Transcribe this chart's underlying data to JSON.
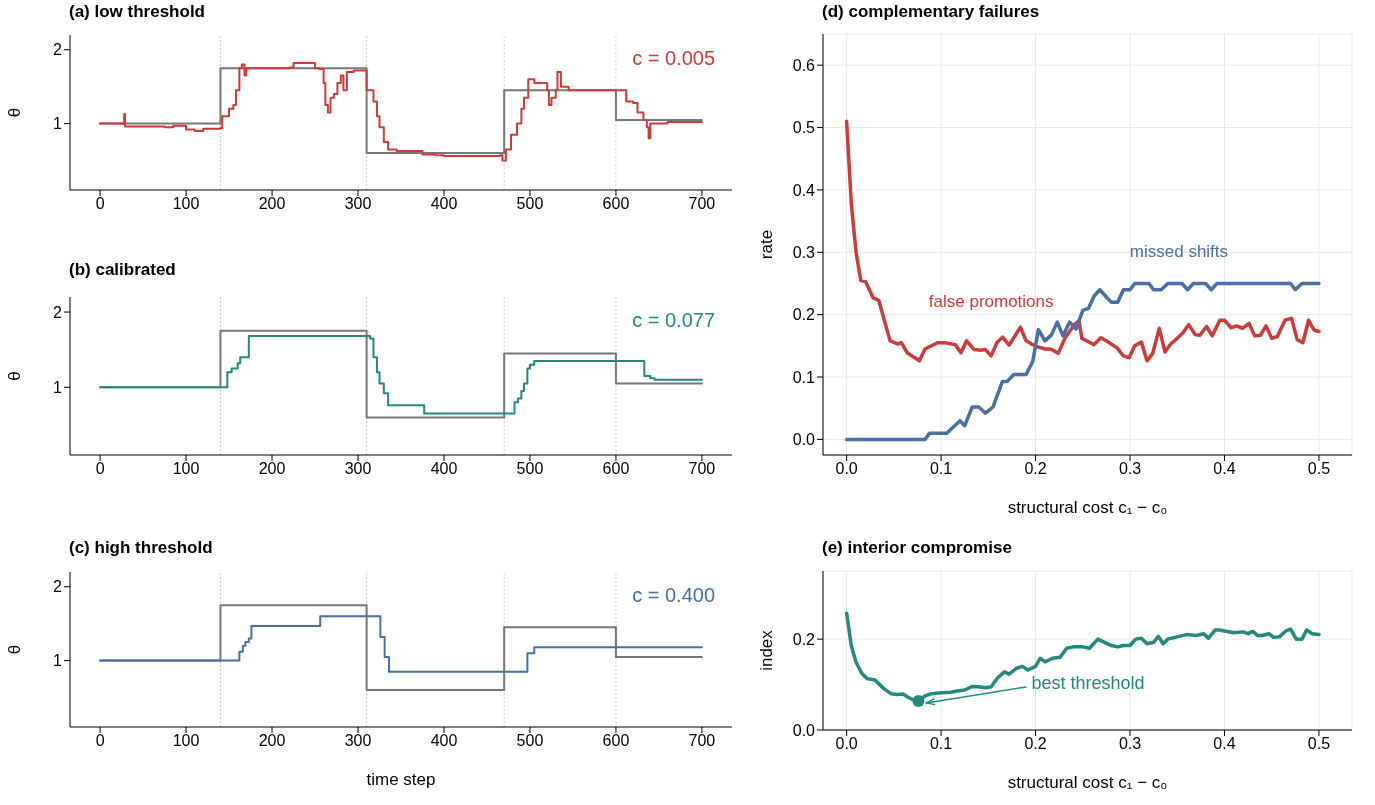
{
  "chart_data": [
    {
      "type": "step",
      "title": "(a) low threshold",
      "ylabel": "θ",
      "xlim": [
        -35,
        735
      ],
      "xticks": [
        0,
        100,
        200,
        300,
        400,
        500,
        600,
        700
      ],
      "ylim": [
        0.1,
        2.2
      ],
      "yticks": [
        1,
        2
      ],
      "grid": false,
      "ref_lines": [
        {
          "axis": "x",
          "value": 140,
          "color": "#bbbbbb",
          "line_style": "dotted"
        },
        {
          "axis": "x",
          "value": 310,
          "color": "#bbbbbb",
          "line_style": "dotted"
        },
        {
          "axis": "x",
          "value": 470,
          "color": "#bbbbbb",
          "line_style": "dotted"
        },
        {
          "axis": "x",
          "value": 600,
          "color": "#bbbbbb",
          "line_style": "dotted"
        }
      ],
      "annotations": [
        "c = 0.005"
      ],
      "series": [
        {
          "color": "#777777",
          "x": [
            0,
            140,
            310,
            470,
            600,
            700
          ],
          "values": [
            1.0,
            1.75,
            0.6,
            1.45,
            1.05,
            1.05
          ]
        },
        {
          "color": "#cc3a3a",
          "x": [
            0,
            28,
            29,
            31,
            60,
            75,
            85,
            100,
            110,
            120,
            140,
            142,
            150,
            155,
            158,
            162,
            165,
            168,
            170,
            175,
            220,
            225,
            245,
            250,
            255,
            260,
            262,
            265,
            268,
            272,
            276,
            280,
            283,
            287,
            295,
            305,
            310,
            315,
            318,
            322,
            325,
            330,
            335,
            345,
            370,
            375,
            390,
            400,
            450,
            465,
            468,
            472,
            478,
            485,
            490,
            493,
            498,
            505,
            512,
            520,
            522,
            525,
            530,
            532,
            536,
            545,
            600,
            610,
            612,
            620,
            625,
            632,
            636,
            638,
            640,
            660,
            700
          ],
          "values": [
            1.0,
            1.13,
            0.96,
            0.96,
            0.96,
            0.95,
            0.97,
            0.92,
            0.9,
            0.93,
            0.94,
            1.1,
            1.2,
            1.25,
            1.45,
            1.75,
            1.8,
            1.65,
            1.75,
            1.75,
            1.76,
            1.82,
            1.82,
            1.75,
            1.74,
            1.55,
            1.25,
            1.15,
            1.35,
            1.4,
            1.55,
            1.65,
            1.45,
            1.7,
            1.72,
            1.72,
            1.45,
            1.45,
            1.3,
            1.1,
            0.95,
            0.75,
            0.65,
            0.63,
            0.63,
            0.58,
            0.57,
            0.56,
            0.56,
            0.57,
            0.5,
            0.65,
            0.85,
            1.0,
            1.2,
            1.35,
            1.6,
            1.55,
            1.55,
            1.45,
            1.25,
            1.35,
            1.45,
            1.7,
            1.5,
            1.45,
            1.45,
            1.45,
            1.3,
            1.28,
            1.15,
            1.05,
            0.95,
            0.8,
            1.0,
            1.02,
            1.02
          ]
        }
      ]
    },
    {
      "type": "step",
      "title": "(b) calibrated",
      "ylabel": "θ",
      "xlim": [
        -35,
        735
      ],
      "xticks": [
        0,
        100,
        200,
        300,
        400,
        500,
        600,
        700
      ],
      "ylim": [
        0.1,
        2.2
      ],
      "yticks": [
        1,
        2
      ],
      "grid": false,
      "ref_lines": [
        {
          "axis": "x",
          "value": 140,
          "color": "#bbbbbb",
          "line_style": "dotted"
        },
        {
          "axis": "x",
          "value": 310,
          "color": "#bbbbbb",
          "line_style": "dotted"
        },
        {
          "axis": "x",
          "value": 470,
          "color": "#bbbbbb",
          "line_style": "dotted"
        },
        {
          "axis": "x",
          "value": 600,
          "color": "#bbbbbb",
          "line_style": "dotted"
        }
      ],
      "annotations": [
        "c = 0.077"
      ],
      "series": [
        {
          "color": "#777777",
          "x": [
            0,
            140,
            310,
            470,
            600,
            700
          ],
          "values": [
            1.0,
            1.75,
            0.6,
            1.45,
            1.05,
            1.05
          ]
        },
        {
          "color": "#23897a",
          "x": [
            0,
            148,
            153,
            160,
            163,
            166,
            173,
            310,
            314,
            318,
            322,
            325,
            330,
            335,
            375,
            377,
            482,
            486,
            490,
            493,
            497,
            500,
            505,
            630,
            633,
            640,
            645,
            700
          ],
          "values": [
            1.0,
            1.2,
            1.25,
            1.32,
            1.4,
            1.4,
            1.68,
            1.68,
            1.65,
            1.4,
            1.2,
            1.05,
            0.92,
            0.76,
            0.76,
            0.65,
            0.8,
            0.85,
            0.95,
            1.05,
            1.25,
            1.3,
            1.35,
            1.35,
            1.15,
            1.12,
            1.1,
            1.1
          ]
        }
      ]
    },
    {
      "type": "step",
      "title": "(c) high threshold",
      "ylabel": "θ",
      "xlabel": "time step",
      "xlim": [
        -35,
        735
      ],
      "xticks": [
        0,
        100,
        200,
        300,
        400,
        500,
        600,
        700
      ],
      "ylim": [
        0.1,
        2.2
      ],
      "yticks": [
        1,
        2
      ],
      "grid": false,
      "ref_lines": [
        {
          "axis": "x",
          "value": 140,
          "color": "#bbbbbb",
          "line_style": "dotted"
        },
        {
          "axis": "x",
          "value": 310,
          "color": "#bbbbbb",
          "line_style": "dotted"
        },
        {
          "axis": "x",
          "value": 470,
          "color": "#bbbbbb",
          "line_style": "dotted"
        },
        {
          "axis": "x",
          "value": 600,
          "color": "#bbbbbb",
          "line_style": "dotted"
        }
      ],
      "annotations": [
        "c = 0.400"
      ],
      "series": [
        {
          "color": "#777777",
          "x": [
            0,
            140,
            310,
            470,
            600,
            700
          ],
          "values": [
            1.0,
            1.75,
            0.6,
            1.45,
            1.05,
            1.05
          ]
        },
        {
          "color": "#4a6fa5",
          "x": [
            0,
            160,
            162,
            166,
            169,
            173,
            176,
            253,
            256,
            323,
            326,
            331,
            336,
            494,
            497,
            505,
            700
          ],
          "values": [
            1.0,
            1.0,
            1.12,
            1.2,
            1.25,
            1.3,
            1.47,
            1.47,
            1.6,
            1.6,
            1.32,
            1.05,
            0.85,
            0.85,
            1.1,
            1.18,
            1.18
          ]
        }
      ]
    },
    {
      "type": "line",
      "title": "(d) complementary failures",
      "ylabel": "rate",
      "xlabel": "structural cost c₁ − c₀",
      "xlim": [
        -0.025,
        0.535
      ],
      "xticks": [
        {
          "value": 0,
          "label": "0.0"
        },
        0.1,
        0.2,
        0.3,
        0.4,
        0.5
      ],
      "ylim": [
        -0.025,
        0.65
      ],
      "yticks": [
        {
          "value": 0,
          "label": "0.0"
        },
        0.1,
        0.2,
        0.3,
        0.4,
        0.5,
        0.6
      ],
      "grid": true,
      "series": [
        {
          "name": "false promotions",
          "color": "#cc3a3a",
          "x": [
            0,
            0.005,
            0.01,
            0.015,
            0.02,
            0.028,
            0.034,
            0.046,
            0.054,
            0.058,
            0.064,
            0.077,
            0.083,
            0.096,
            0.104,
            0.115,
            0.121,
            0.127,
            0.135,
            0.142,
            0.147,
            0.153,
            0.159,
            0.165,
            0.172,
            0.184,
            0.19,
            0.199,
            0.21,
            0.216,
            0.224,
            0.231,
            0.241,
            0.246,
            0.249,
            0.258,
            0.262,
            0.269,
            0.275,
            0.286,
            0.293,
            0.299,
            0.305,
            0.312,
            0.318,
            0.324,
            0.331,
            0.337,
            0.343,
            0.35,
            0.356,
            0.362,
            0.369,
            0.374,
            0.381,
            0.387,
            0.395,
            0.4,
            0.407,
            0.413,
            0.419,
            0.426,
            0.432,
            0.438,
            0.444,
            0.45,
            0.456,
            0.464,
            0.471,
            0.477,
            0.483,
            0.489,
            0.495,
            0.5
          ],
          "values": [
            0.51,
            0.377,
            0.3,
            0.255,
            0.253,
            0.227,
            0.223,
            0.158,
            0.153,
            0.155,
            0.139,
            0.126,
            0.145,
            0.155,
            0.155,
            0.152,
            0.139,
            0.158,
            0.144,
            0.143,
            0.144,
            0.134,
            0.155,
            0.164,
            0.151,
            0.18,
            0.158,
            0.15,
            0.145,
            0.145,
            0.138,
            0.162,
            0.184,
            0.19,
            0.162,
            0.155,
            0.152,
            0.163,
            0.158,
            0.147,
            0.134,
            0.131,
            0.15,
            0.156,
            0.126,
            0.138,
            0.178,
            0.14,
            0.153,
            0.162,
            0.171,
            0.184,
            0.168,
            0.167,
            0.181,
            0.166,
            0.191,
            0.191,
            0.179,
            0.182,
            0.178,
            0.186,
            0.166,
            0.167,
            0.182,
            0.162,
            0.165,
            0.191,
            0.194,
            0.16,
            0.155,
            0.191,
            0.175,
            0.173
          ]
        },
        {
          "name": "missed shifts",
          "color": "#4a6fa5",
          "x": [
            0,
            0.083,
            0.088,
            0.106,
            0.12,
            0.125,
            0.133,
            0.14,
            0.147,
            0.155,
            0.165,
            0.17,
            0.177,
            0.19,
            0.197,
            0.203,
            0.21,
            0.217,
            0.223,
            0.229,
            0.236,
            0.243,
            0.25,
            0.256,
            0.262,
            0.268,
            0.274,
            0.28,
            0.287,
            0.293,
            0.3,
            0.305,
            0.32,
            0.325,
            0.333,
            0.34,
            0.355,
            0.361,
            0.367,
            0.38,
            0.386,
            0.392,
            0.47,
            0.475,
            0.482,
            0.5
          ],
          "values": [
            0,
            0,
            0.01,
            0.01,
            0.03,
            0.022,
            0.052,
            0.052,
            0.042,
            0.052,
            0.093,
            0.093,
            0.104,
            0.104,
            0.125,
            0.176,
            0.158,
            0.168,
            0.188,
            0.166,
            0.188,
            0.177,
            0.207,
            0.21,
            0.23,
            0.24,
            0.23,
            0.22,
            0.22,
            0.24,
            0.24,
            0.25,
            0.25,
            0.24,
            0.24,
            0.25,
            0.25,
            0.24,
            0.25,
            0.25,
            0.24,
            0.25,
            0.25,
            0.24,
            0.25,
            0.25
          ]
        }
      ]
    },
    {
      "type": "line",
      "title": "(e) interior compromise",
      "ylabel": "index",
      "xlabel": "structural cost c₁ − c₀",
      "xlim": [
        -0.025,
        0.535
      ],
      "xticks": [
        {
          "value": 0,
          "label": "0.0"
        },
        0.1,
        0.2,
        0.3,
        0.4,
        0.5
      ],
      "ylim": [
        0,
        0.35
      ],
      "yticks": [
        {
          "value": 0,
          "label": "0.0"
        },
        0.2
      ],
      "grid": true,
      "annotations": [
        {
          "text": "best threshold",
          "x": 0.076,
          "y": 0.064
        }
      ],
      "series": [
        {
          "color": "#23897a",
          "x": [
            0,
            0.005,
            0.01,
            0.016,
            0.022,
            0.03,
            0.04,
            0.047,
            0.053,
            0.06,
            0.065,
            0.07,
            0.076,
            0.083,
            0.09,
            0.1,
            0.11,
            0.117,
            0.125,
            0.133,
            0.14,
            0.147,
            0.153,
            0.16,
            0.167,
            0.172,
            0.18,
            0.186,
            0.192,
            0.2,
            0.205,
            0.21,
            0.218,
            0.226,
            0.233,
            0.24,
            0.25,
            0.257,
            0.266,
            0.273,
            0.28,
            0.287,
            0.293,
            0.3,
            0.306,
            0.312,
            0.318,
            0.325,
            0.33,
            0.335,
            0.34,
            0.35,
            0.36,
            0.37,
            0.378,
            0.383,
            0.39,
            0.395,
            0.4,
            0.41,
            0.42,
            0.425,
            0.43,
            0.435,
            0.44,
            0.447,
            0.452,
            0.458,
            0.465,
            0.47,
            0.476,
            0.482,
            0.487,
            0.493,
            0.5
          ],
          "values": [
            0.257,
            0.185,
            0.149,
            0.125,
            0.113,
            0.11,
            0.09,
            0.08,
            0.078,
            0.079,
            0.072,
            0.067,
            0.064,
            0.075,
            0.08,
            0.082,
            0.083,
            0.086,
            0.088,
            0.096,
            0.095,
            0.093,
            0.095,
            0.115,
            0.128,
            0.123,
            0.136,
            0.14,
            0.132,
            0.14,
            0.158,
            0.15,
            0.158,
            0.16,
            0.18,
            0.183,
            0.183,
            0.18,
            0.2,
            0.193,
            0.186,
            0.183,
            0.186,
            0.186,
            0.2,
            0.202,
            0.19,
            0.193,
            0.206,
            0.19,
            0.2,
            0.205,
            0.21,
            0.208,
            0.212,
            0.202,
            0.22,
            0.22,
            0.218,
            0.214,
            0.216,
            0.212,
            0.217,
            0.208,
            0.208,
            0.212,
            0.204,
            0.205,
            0.218,
            0.222,
            0.2,
            0.2,
            0.22,
            0.212,
            0.21
          ]
        },
        {
          "type": "scatter",
          "marker": "circle",
          "color": "#23897a",
          "x": [
            0.076
          ],
          "values": [
            0.064
          ]
        }
      ]
    }
  ]
}
